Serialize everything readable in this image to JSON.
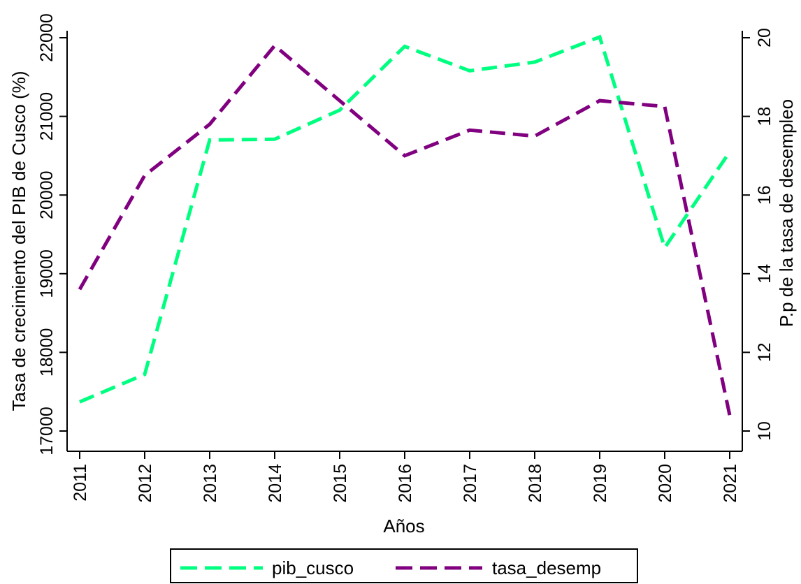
{
  "chart_data": {
    "type": "line",
    "title": "",
    "xlabel": "Años",
    "ylabel_left": "Tasa de crecimiento del PIB de Cusco (%)",
    "ylabel_right": "P.p de la tasa de desempleo",
    "x": [
      2011,
      2012,
      2013,
      2014,
      2015,
      2016,
      2017,
      2018,
      2019,
      2020,
      2021
    ],
    "x_tick_labels": [
      "2011",
      "2012",
      "2013",
      "2014",
      "2015",
      "2016",
      "2017",
      "2018",
      "2019",
      "2020",
      "2021"
    ],
    "ylim_left": [
      17000,
      22000
    ],
    "yticks_left": [
      17000,
      18000,
      19000,
      20000,
      21000,
      22000
    ],
    "ylim_right": [
      10,
      20
    ],
    "yticks_right": [
      10,
      12,
      14,
      16,
      18,
      20
    ],
    "grid": false,
    "legend_position": "bottom",
    "series": [
      {
        "name": "pib_cusco",
        "axis": "left",
        "color": "#00ff80",
        "line_style": "dashed",
        "values": [
          17370,
          17720,
          20700,
          20710,
          21080,
          21890,
          21580,
          21690,
          22010,
          19330,
          20550
        ]
      },
      {
        "name": "tasa_desemp",
        "axis": "right",
        "color": "#800080",
        "line_style": "dashed",
        "values": [
          13.6,
          16.5,
          17.8,
          19.8,
          18.4,
          17.0,
          17.65,
          17.5,
          18.4,
          18.25,
          10.4
        ]
      }
    ]
  }
}
